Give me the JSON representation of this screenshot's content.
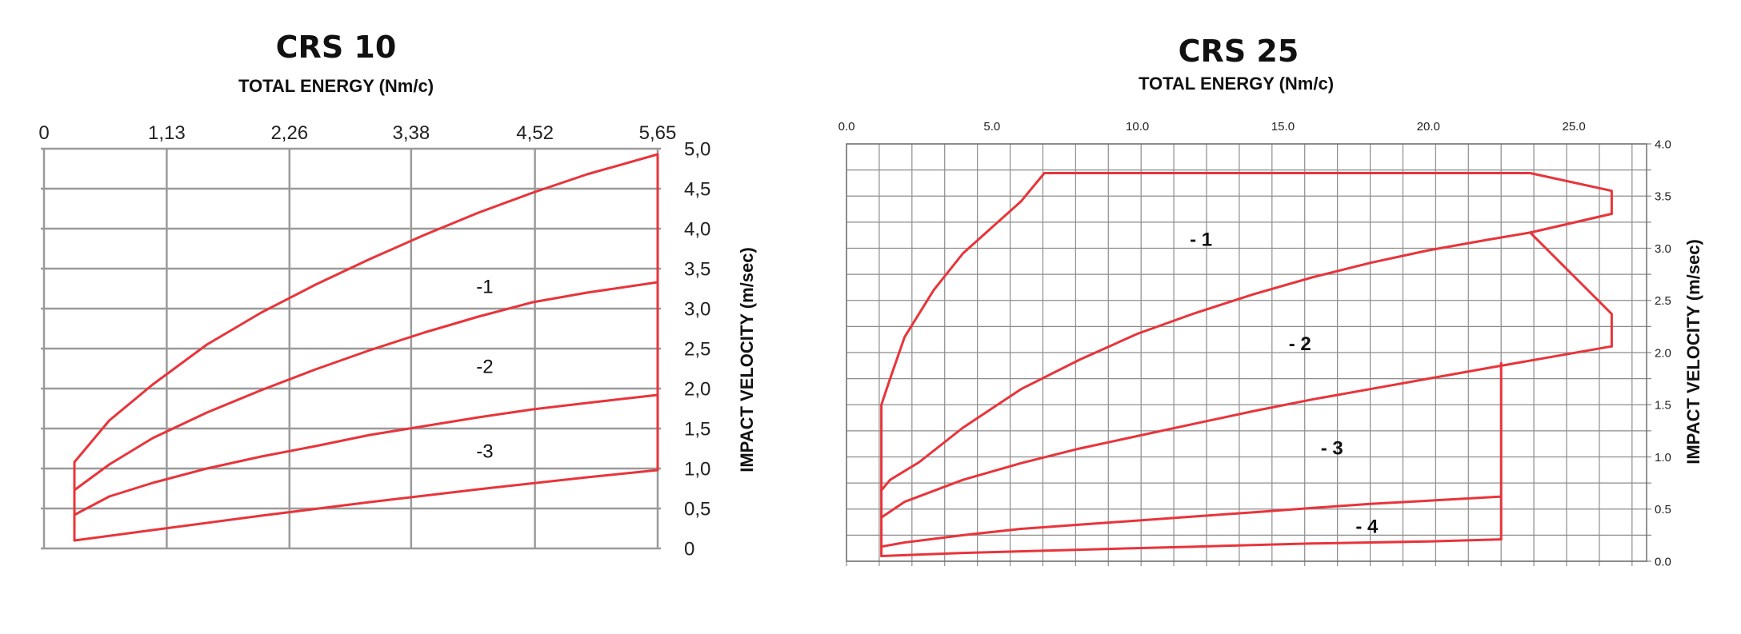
{
  "chart_data": [
    {
      "type": "line",
      "title": "CRS 10",
      "xlabel": "TOTAL ENERGY (Nm/c)",
      "ylabel": "IMPACT VELOCITY (m/sec)",
      "x_axis_position": "top",
      "y_axis_position": "right",
      "xlim": [
        0,
        5.65
      ],
      "ylim": [
        0,
        5.0
      ],
      "x_ticks": [
        "0",
        "1,13",
        "2,26",
        "3,38",
        "4,52",
        "5,65"
      ],
      "x_tick_values": [
        0,
        1.13,
        2.26,
        3.38,
        4.52,
        5.65
      ],
      "y_ticks": [
        "0",
        "0,5",
        "1,0",
        "1,5",
        "2,0",
        "2,5",
        "3,0",
        "3,5",
        "4,0",
        "4,5",
        "5,0"
      ],
      "y_tick_values": [
        0,
        0.5,
        1.0,
        1.5,
        2.0,
        2.5,
        3.0,
        3.5,
        4.0,
        4.5,
        5.0
      ],
      "grid": true,
      "color": "#e8343a",
      "series": [
        {
          "x": [
            0.28,
            0.6,
            1.0,
            1.5,
            2.0,
            2.5,
            3.0,
            3.5,
            4.0,
            4.5,
            5.0,
            5.65
          ],
          "y": [
            1.08,
            1.6,
            2.05,
            2.55,
            2.95,
            3.3,
            3.62,
            3.92,
            4.2,
            4.45,
            4.68,
            4.93
          ]
        },
        {
          "x": [
            0.28,
            0.6,
            1.0,
            1.5,
            2.0,
            2.5,
            3.0,
            3.5,
            4.0,
            4.5,
            5.0,
            5.65
          ],
          "y": [
            0.73,
            1.05,
            1.38,
            1.7,
            1.98,
            2.24,
            2.48,
            2.7,
            2.9,
            3.08,
            3.2,
            3.33
          ]
        },
        {
          "x": [
            0.28,
            0.6,
            1.0,
            1.5,
            2.0,
            2.5,
            3.0,
            3.5,
            4.0,
            4.5,
            5.0,
            5.65
          ],
          "y": [
            0.42,
            0.65,
            0.82,
            1.0,
            1.15,
            1.28,
            1.42,
            1.53,
            1.64,
            1.74,
            1.82,
            1.92
          ]
        },
        {
          "x": [
            0.28,
            1.0,
            2.0,
            3.0,
            4.0,
            5.0,
            5.65
          ],
          "y": [
            0.1,
            0.23,
            0.41,
            0.58,
            0.74,
            0.89,
            0.98
          ]
        },
        {
          "x": [
            0.28,
            0.28
          ],
          "y": [
            0.1,
            1.08
          ]
        },
        {
          "x": [
            5.65,
            5.65
          ],
          "y": [
            0.98,
            4.93
          ]
        }
      ],
      "annotations": [
        {
          "text": "-1",
          "x": 3.98,
          "y": 3.28
        },
        {
          "text": "-2",
          "x": 3.98,
          "y": 2.28
        },
        {
          "text": "-3",
          "x": 3.98,
          "y": 1.22
        }
      ]
    },
    {
      "type": "line",
      "title": "CRS 25",
      "xlabel": "TOTAL ENERGY (Nm/c)",
      "ylabel": "IMPACT VELOCITY (m/sec)",
      "x_axis_position": "top",
      "y_axis_position": "right",
      "xlim": [
        0,
        27.5
      ],
      "ylim": [
        0,
        4.0
      ],
      "x_ticks": [
        "0.0",
        "5.0",
        "10.0",
        "15.0",
        "20.0",
        "25.0"
      ],
      "x_tick_values": [
        0,
        5,
        10,
        15,
        20,
        25
      ],
      "y_ticks": [
        "0.0",
        "0.5",
        "1.0",
        "1.5",
        "2.0",
        "2.5",
        "3.0",
        "3.5",
        "4.0"
      ],
      "y_tick_values": [
        0,
        0.5,
        1.0,
        1.5,
        2.0,
        2.5,
        3.0,
        3.5,
        4.0
      ],
      "minor_x_step": 1.125,
      "minor_y_step": 0.25,
      "grid": true,
      "color": "#e8343a",
      "series": [
        {
          "x": [
            1.2,
            1.2,
            1.5,
            2.0,
            3.0,
            4.0,
            5.0,
            6.0,
            6.8,
            23.5,
            26.3,
            26.3,
            23.5
          ],
          "y": [
            0.05,
            1.5,
            1.75,
            2.15,
            2.6,
            2.95,
            3.2,
            3.45,
            3.72,
            3.72,
            3.55,
            3.33,
            3.15
          ]
        },
        {
          "x": [
            1.2,
            1.5,
            2.5,
            4.0,
            6.0,
            8.0,
            10.0,
            12.0,
            14.0,
            16.0,
            18.0,
            20.0,
            22.0,
            23.5,
            26.3
          ],
          "y": [
            0.68,
            0.78,
            0.95,
            1.28,
            1.65,
            1.93,
            2.18,
            2.38,
            2.56,
            2.72,
            2.86,
            2.98,
            3.08,
            3.15,
            3.33
          ]
        },
        {
          "x": [
            23.5,
            26.3,
            26.3
          ],
          "y": [
            3.15,
            2.37,
            2.06
          ]
        },
        {
          "x": [
            1.2,
            2.0,
            4.0,
            6.0,
            8.0,
            10.0,
            12.0,
            14.0,
            16.0,
            18.0,
            20.0,
            22.0,
            26.3
          ],
          "y": [
            0.42,
            0.57,
            0.78,
            0.94,
            1.08,
            1.2,
            1.32,
            1.44,
            1.55,
            1.65,
            1.75,
            1.85,
            2.06
          ]
        },
        {
          "x": [
            1.2,
            2.0,
            4.0,
            6.0,
            8.0,
            10.0,
            12.0,
            14.0,
            16.0,
            18.0,
            20.0,
            22.5
          ],
          "y": [
            0.14,
            0.18,
            0.25,
            0.31,
            0.35,
            0.39,
            0.43,
            0.47,
            0.51,
            0.55,
            0.58,
            0.62
          ]
        },
        {
          "x": [
            1.2,
            4.0,
            8.0,
            12.0,
            16.0,
            20.0,
            22.5
          ],
          "y": [
            0.05,
            0.08,
            0.11,
            0.14,
            0.17,
            0.19,
            0.21
          ]
        },
        {
          "x": [
            22.5,
            22.5
          ],
          "y": [
            0.21,
            1.9
          ]
        }
      ],
      "annotations": [
        {
          "text": "- 1",
          "x": 11.8,
          "y": 3.09
        },
        {
          "text": "- 2",
          "x": 15.2,
          "y": 2.09
        },
        {
          "text": "- 3",
          "x": 16.3,
          "y": 1.09
        },
        {
          "text": "- 4",
          "x": 17.5,
          "y": 0.34
        }
      ]
    }
  ]
}
